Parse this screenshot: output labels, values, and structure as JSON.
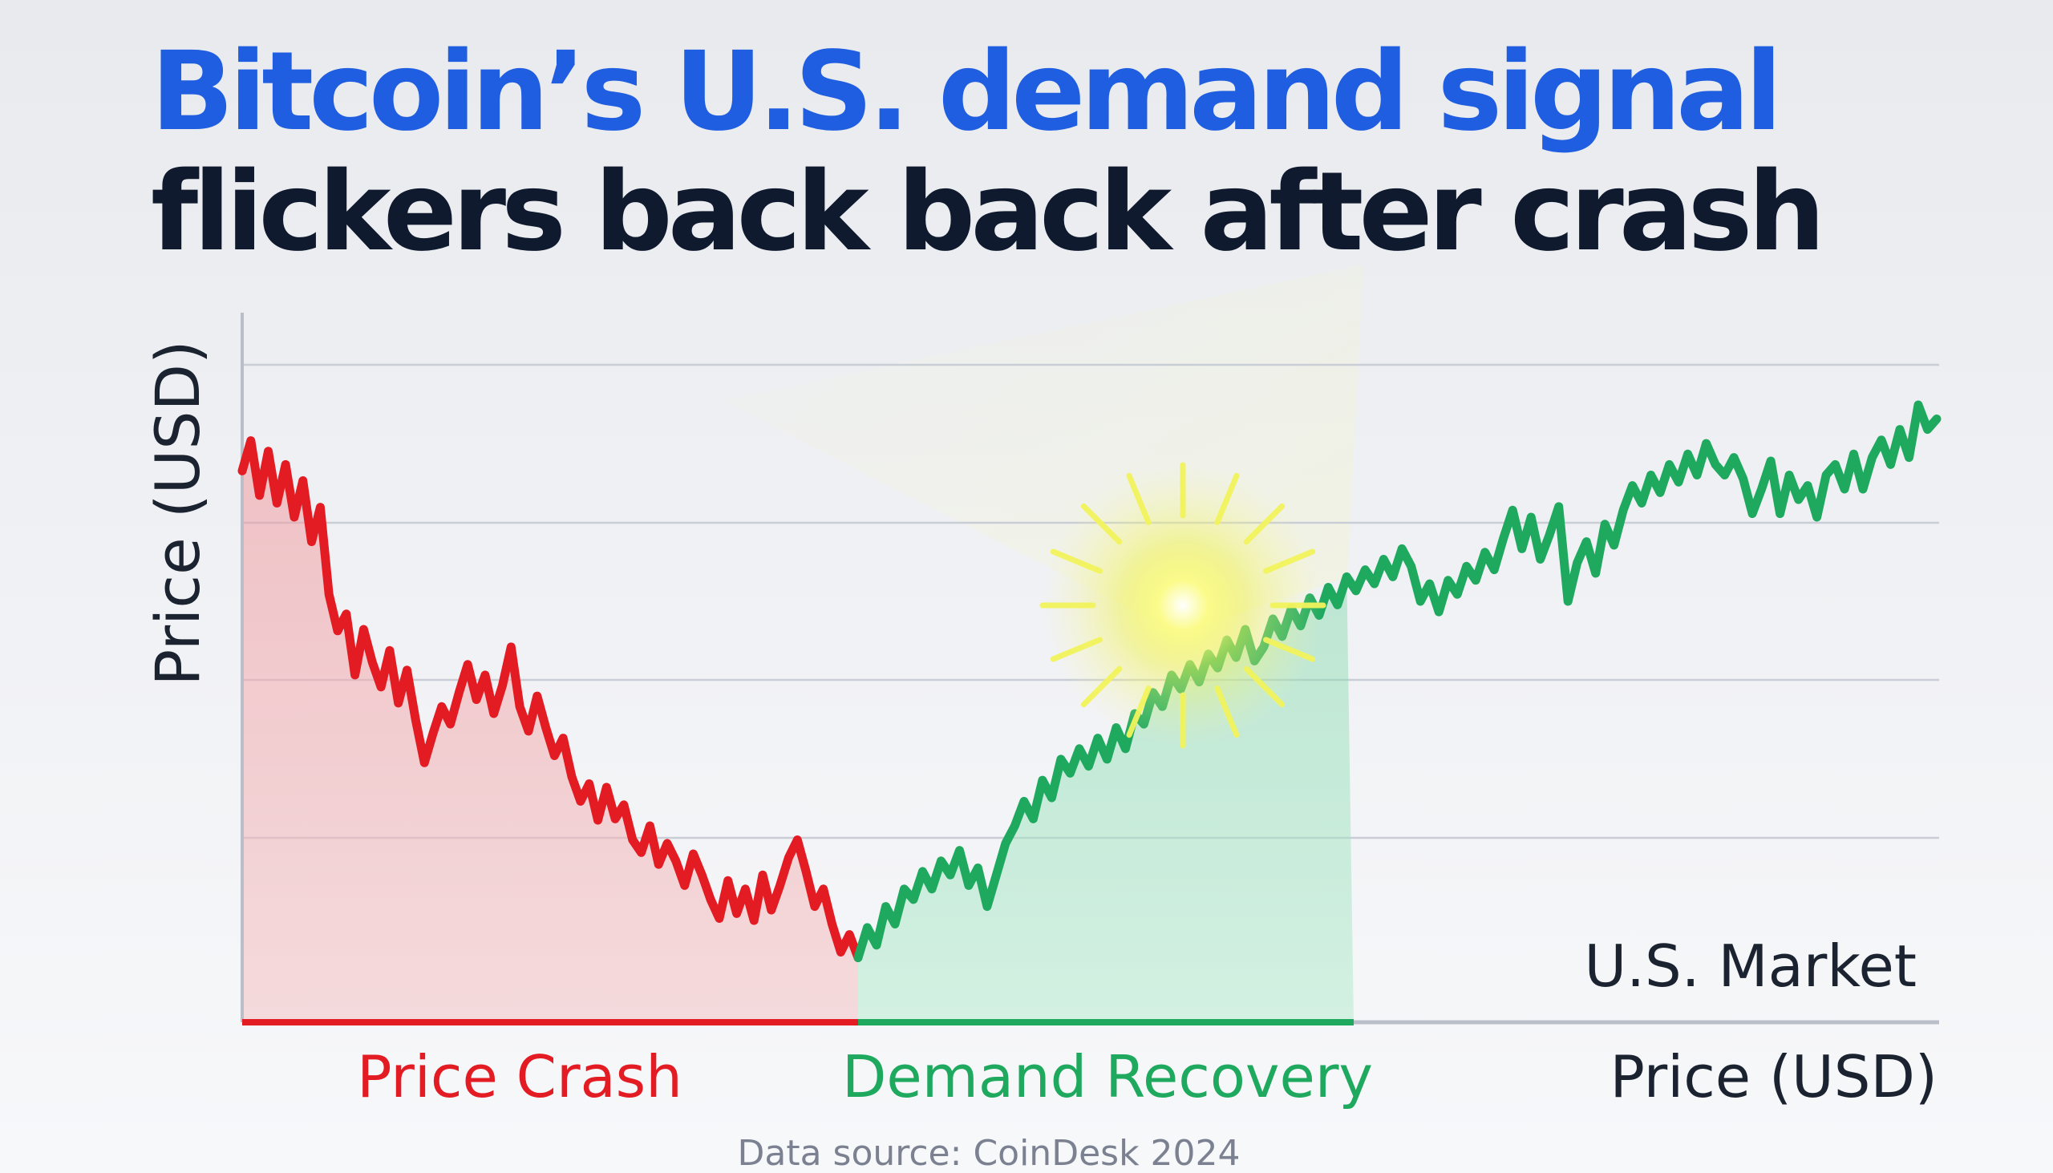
{
  "title_line1": "Bitcoin’s U.S. demand signal",
  "title_line2": "flickers back back after crash",
  "colors": {
    "title_blue": "#1f5ee0",
    "title_dark": "#0f1a2e",
    "crash": "#e31b23",
    "recovery": "#1ea95f",
    "grid": "#c9cdd6",
    "axis": "#b9bec9",
    "text_dark": "#1b2230",
    "source_text": "#7b8190"
  },
  "chart_data": {
    "type": "line",
    "ylabel": "Price (USD)",
    "xlabel": "Price (USD)",
    "region_labels": [
      "Price Crash",
      "Demand Recovery"
    ],
    "corner_label": "U.S. Market",
    "source": "Data source: CoinDesk 2024",
    "grid": true,
    "y_ticks_labeled": false,
    "annotation_icon": "sun-glow-icon",
    "series": [
      {
        "phase": "crash",
        "color": "#e31b23",
        "values": [
          78.6,
          82.9,
          75.1,
          81.4,
          74.0,
          79.5,
          72.0,
          77.2,
          68.5,
          73.4,
          61.0,
          55.8,
          58.2,
          49.5,
          56.0,
          51.3,
          47.8,
          53.0,
          45.5,
          50.2,
          43.1,
          37.0,
          41.2,
          45.0,
          42.5,
          47.0,
          51.0,
          46.0,
          49.5,
          44.0,
          48.0,
          53.5,
          45.0,
          41.5,
          46.5,
          42.0,
          38.0,
          40.5,
          35.0,
          31.5,
          34.0,
          28.8,
          33.5,
          29.0,
          31.0,
          26.0,
          24.2,
          28.0,
          22.5,
          25.5,
          23.0,
          19.5,
          24.0,
          21.0,
          17.5,
          14.8,
          20.2,
          15.5,
          19.0,
          14.5,
          21.0,
          16.0,
          19.5,
          23.5,
          26.0,
          21.5,
          16.5,
          19.0,
          14.0,
          10.0,
          12.5,
          9.2
        ]
      },
      {
        "phase": "recovery",
        "color": "#1ea95f",
        "values": [
          9.2,
          13.5,
          11.0,
          16.5,
          14.0,
          19.0,
          17.5,
          21.5,
          19.0,
          23.0,
          21.0,
          24.5,
          19.5,
          22.0,
          16.5,
          21.0,
          25.5,
          28.0,
          31.5,
          29.0,
          34.5,
          32.0,
          37.5,
          35.5,
          39.0,
          36.5,
          40.5,
          37.5,
          42.0,
          39.0,
          44.0,
          42.5,
          47.0,
          45.0,
          49.5,
          47.5,
          51.0,
          48.5,
          52.5,
          50.5,
          54.5,
          52.0,
          56.0,
          51.5,
          53.5,
          57.5,
          55.0,
          59.0,
          56.5,
          60.5,
          58.0,
          62.0,
          59.5,
          63.5,
          61.5,
          64.5,
          62.5,
          66.0,
          63.5,
          67.5,
          65.0,
          60.0,
          62.5,
          58.5,
          63.0,
          61.0,
          65.0,
          63.0,
          67.0,
          64.5,
          69.0,
          73.0,
          67.5,
          72.0,
          66.0,
          69.5,
          73.5,
          60.0,
          65.5,
          68.5,
          64.0,
          71.0,
          68.0,
          73.0,
          76.5,
          74.0,
          78.0,
          75.5,
          79.5,
          77.0,
          81.0,
          78.0,
          82.5,
          79.5,
          78.0,
          80.5,
          77.5,
          72.5,
          76.0,
          80.0,
          72.5,
          78.0,
          74.5,
          76.5,
          72.0,
          78.0,
          79.5,
          76.0,
          81.0,
          76.0,
          80.5,
          83.0,
          79.5,
          84.5,
          80.5,
          88.0,
          84.5,
          86.0
        ]
      }
    ]
  }
}
